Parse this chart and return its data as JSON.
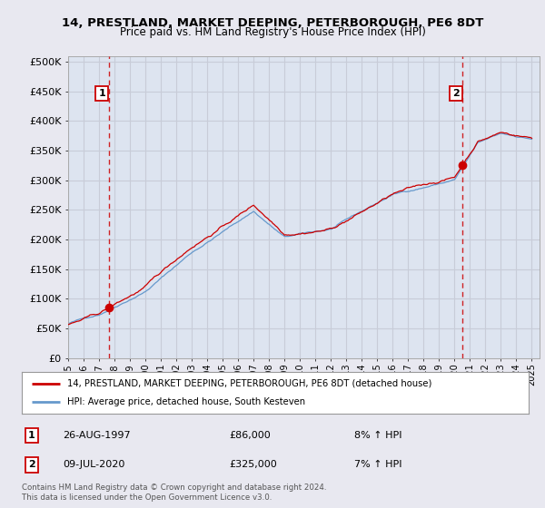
{
  "title": "14, PRESTLAND, MARKET DEEPING, PETERBOROUGH, PE6 8DT",
  "subtitle": "Price paid vs. HM Land Registry's House Price Index (HPI)",
  "xlim_start": 1995.0,
  "xlim_end": 2025.5,
  "ylim_min": 0,
  "ylim_max": 510000,
  "yticks": [
    0,
    50000,
    100000,
    150000,
    200000,
    250000,
    300000,
    350000,
    400000,
    450000,
    500000
  ],
  "ytick_labels": [
    "£0",
    "£50K",
    "£100K",
    "£150K",
    "£200K",
    "£250K",
    "£300K",
    "£350K",
    "£400K",
    "£450K",
    "£500K"
  ],
  "sale1_x": 1997.65,
  "sale1_y": 86000,
  "sale1_label": "1",
  "sale2_x": 2020.52,
  "sale2_y": 325000,
  "sale2_label": "2",
  "red_line_color": "#cc0000",
  "blue_line_color": "#6699cc",
  "background_color": "#e8e8f0",
  "plot_bg_color": "#dde4f0",
  "grid_color": "#c8ccd8",
  "legend_label_red": "14, PRESTLAND, MARKET DEEPING, PETERBOROUGH, PE6 8DT (detached house)",
  "legend_label_blue": "HPI: Average price, detached house, South Kesteven",
  "sale1_date": "26-AUG-1997",
  "sale1_price": "£86,000",
  "sale1_hpi": "8% ↑ HPI",
  "sale2_date": "09-JUL-2020",
  "sale2_price": "£325,000",
  "sale2_hpi": "7% ↑ HPI",
  "footer": "Contains HM Land Registry data © Crown copyright and database right 2024.\nThis data is licensed under the Open Government Licence v3.0."
}
